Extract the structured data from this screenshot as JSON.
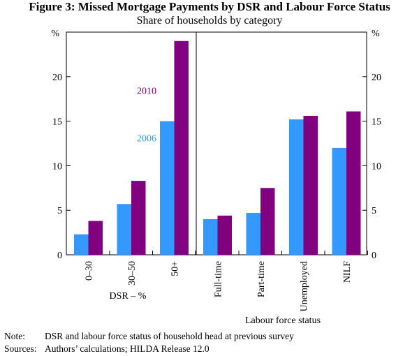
{
  "title": "Figure 3: Missed Mortgage Payments by DSR and Labour Force Status",
  "subtitle": "Share of households by category",
  "chart_data": {
    "type": "bar",
    "unit": "%",
    "ylim": [
      0,
      25
    ],
    "yticks": [
      0,
      5,
      10,
      15,
      20
    ],
    "grid": false,
    "series": [
      {
        "name": "2006",
        "color": "#3399ff"
      },
      {
        "name": "2010",
        "color": "#800080"
      }
    ],
    "panels": [
      {
        "xlabel": "DSR – %",
        "categories": [
          "0–30",
          "30–50",
          "50+"
        ],
        "values": {
          "2006": [
            2.3,
            5.7,
            15.0
          ],
          "2010": [
            3.8,
            8.3,
            24.0
          ]
        }
      },
      {
        "xlabel": "Labour force status",
        "categories": [
          "Full-time",
          "Part-time",
          "Unemployed",
          "NILF"
        ],
        "values": {
          "2006": [
            4.0,
            4.7,
            15.2,
            12.0
          ],
          "2010": [
            4.4,
            7.5,
            15.6,
            16.1
          ]
        }
      }
    ]
  },
  "note_label": "Note:",
  "note_text": "DSR and labour force status of household head at previous survey",
  "sources_label": "Sources:",
  "sources_text": "Authors’ calculations; HILDA Release 12.0"
}
